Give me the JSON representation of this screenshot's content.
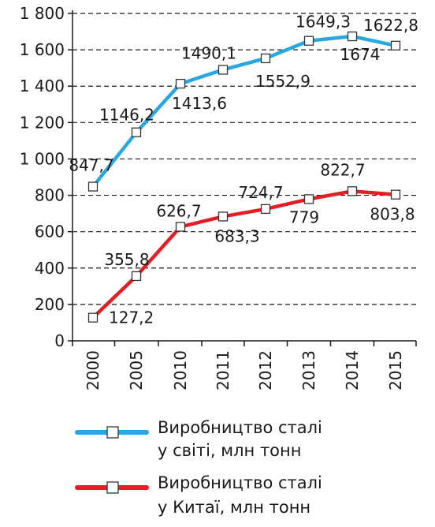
{
  "chart_data": {
    "type": "line",
    "categories": [
      "2000",
      "2005",
      "2010",
      "2011",
      "2012",
      "2013",
      "2014",
      "2015"
    ],
    "y_ticks": [
      0,
      200,
      400,
      600,
      800,
      1000,
      1200,
      1400,
      1600,
      1800
    ],
    "y_tick_labels": [
      "0",
      "200",
      "400",
      "600",
      "800",
      "1 000",
      "1 200",
      "1 400",
      "1 600",
      "1 800"
    ],
    "ylim": [
      0,
      1800
    ],
    "grid": true,
    "legend_position": "bottom",
    "series": [
      {
        "name_line1": "Виробництво сталі",
        "name_line2": "у світі, млн тонн",
        "color": "#29a8e0",
        "values": [
          847.7,
          1146.2,
          1413.6,
          1490.1,
          1552.9,
          1649.3,
          1674,
          1622.8
        ],
        "data_labels": [
          "847,7",
          "1146,2",
          "1413,6",
          "1490,1",
          "1552,9",
          "1649,3",
          "1674",
          "1622,8"
        ]
      },
      {
        "name_line1": "Виробництво сталі",
        "name_line2": "у Китаї, млн тонн",
        "color": "#e31e24",
        "values": [
          127.2,
          355.8,
          626.7,
          683.3,
          724.7,
          779,
          822.7,
          803.8
        ],
        "data_labels": [
          "127,2",
          "355,8",
          "626,7",
          "683,3",
          "724,7",
          "779",
          "822,7",
          "803,8"
        ]
      }
    ]
  }
}
